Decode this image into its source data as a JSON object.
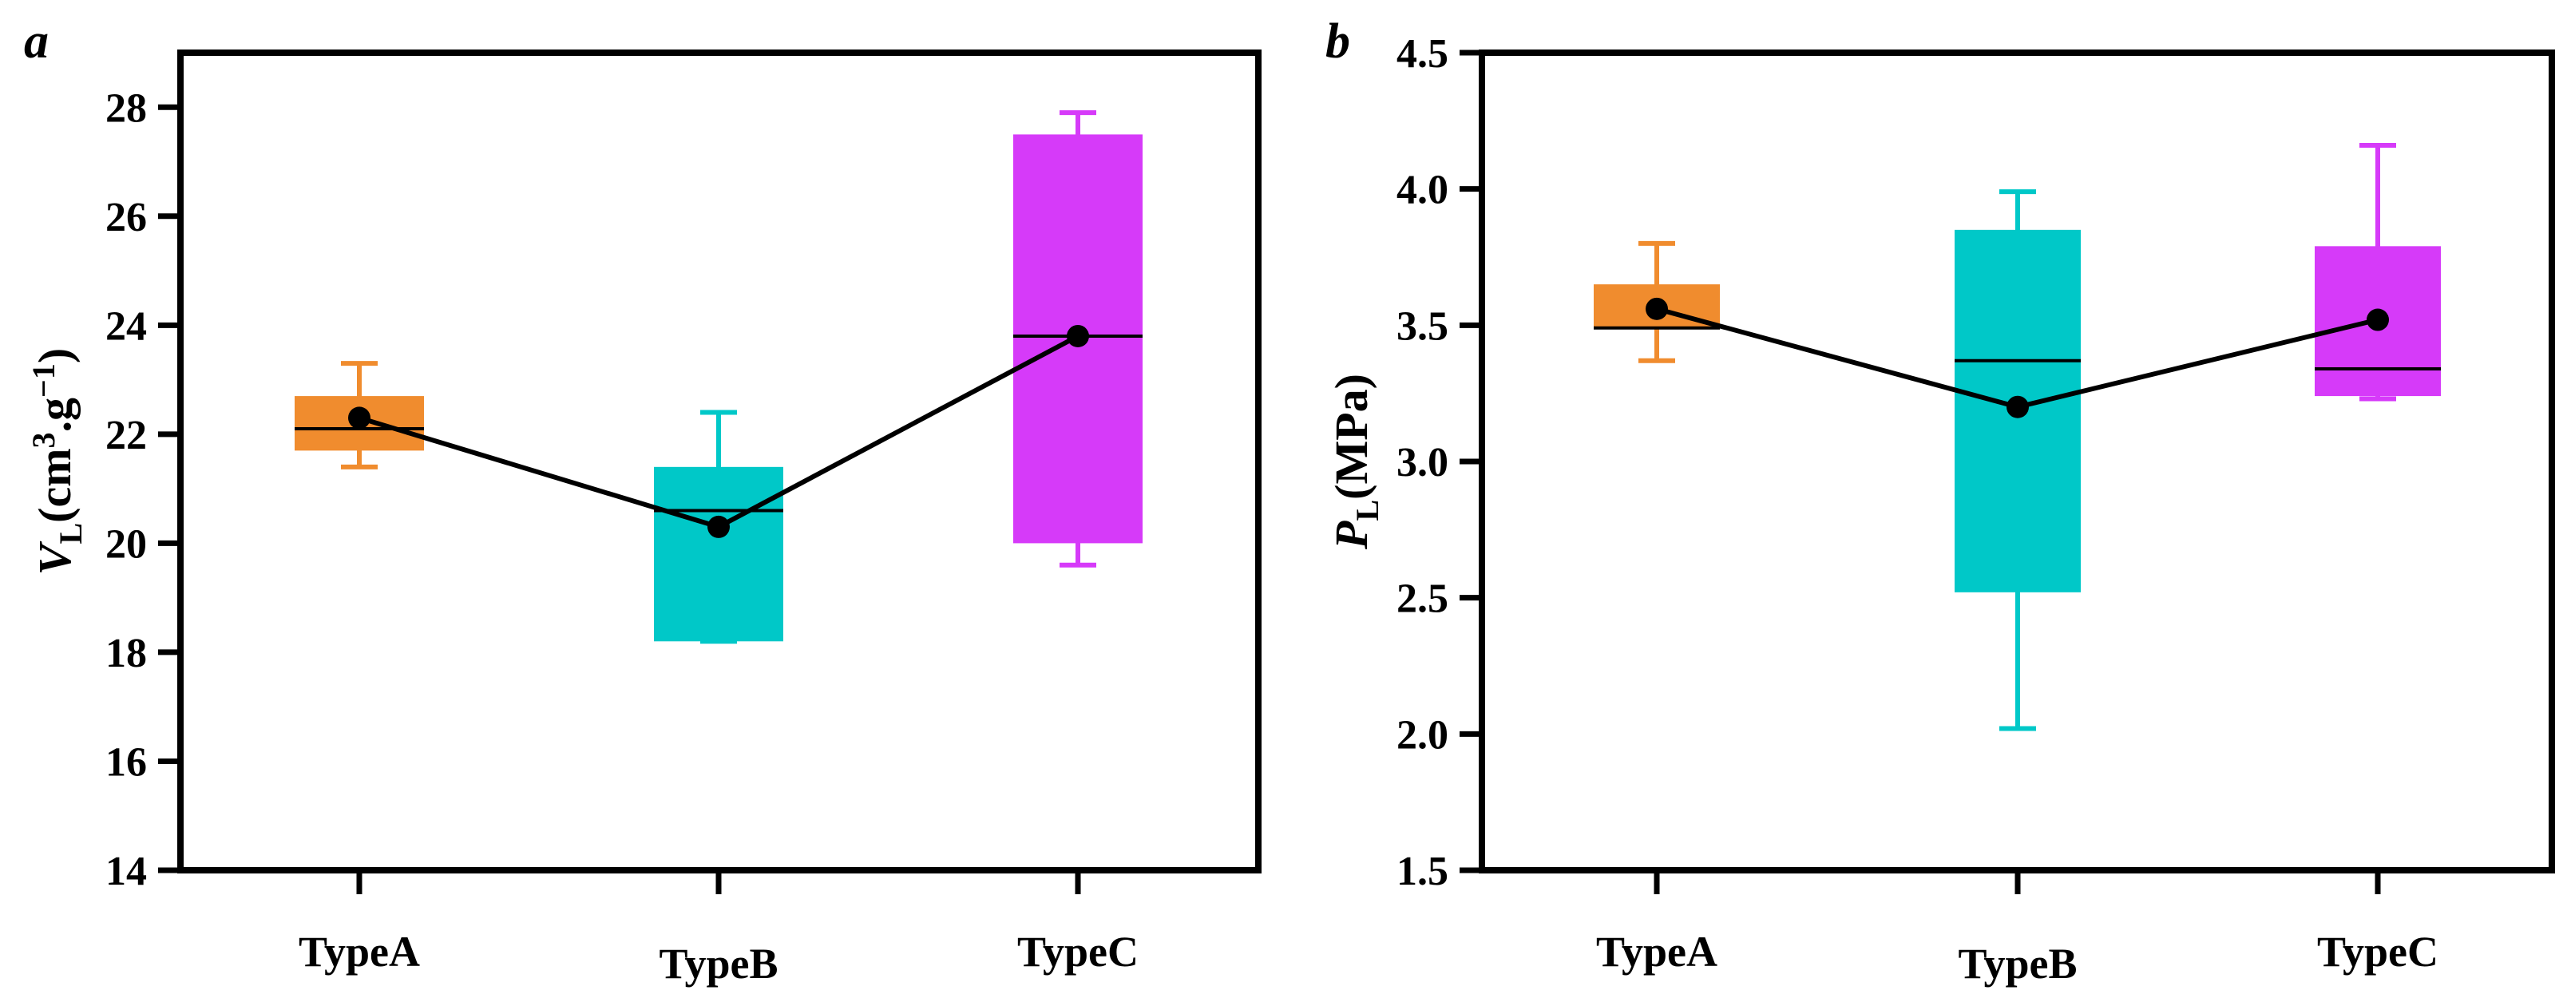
{
  "chart_data": [
    {
      "type": "box",
      "panel_label": "a",
      "ylabel": {
        "main": "V",
        "sub": "L",
        "unit_open": "(cm",
        "sup1": "3",
        "unit_mid": ".g",
        "sup2": "−1",
        "unit_close": ")"
      },
      "ylim": [
        14,
        29
      ],
      "yticks": [
        14,
        16,
        18,
        20,
        22,
        24,
        26,
        28
      ],
      "categories": [
        "TypeA",
        "TypeB",
        "TypeC"
      ],
      "colors": [
        "#F08C2E",
        "#00C8C8",
        "#D63AF9"
      ],
      "boxes": [
        {
          "whisker_low": 21.4,
          "q1": 21.7,
          "median": 22.1,
          "q3": 22.7,
          "whisker_high": 23.3,
          "mean": 22.3
        },
        {
          "whisker_low": 18.2,
          "q1": 18.2,
          "median": 20.6,
          "q3": 21.4,
          "whisker_high": 22.4,
          "mean": 20.3
        },
        {
          "whisker_low": 19.6,
          "q1": 20.0,
          "median": 23.8,
          "q3": 27.5,
          "whisker_high": 27.9,
          "mean": 23.8
        }
      ]
    },
    {
      "type": "box",
      "panel_label": "b",
      "ylabel": {
        "main": "P",
        "sub": "L",
        "unit_open": "(MPa)",
        "sup1": "",
        "unit_mid": "",
        "sup2": "",
        "unit_close": ""
      },
      "ylim": [
        1.5,
        4.5
      ],
      "yticks": [
        1.5,
        2.0,
        2.5,
        3.0,
        3.5,
        4.0,
        4.5
      ],
      "tick_decimals": 1,
      "categories": [
        "TypeA",
        "TypeB",
        "TypeC"
      ],
      "colors": [
        "#F08C2E",
        "#00C8C8",
        "#D63AF9"
      ],
      "boxes": [
        {
          "whisker_low": 3.37,
          "q1": 3.49,
          "median": 3.49,
          "q3": 3.65,
          "whisker_high": 3.8,
          "mean": 3.56
        },
        {
          "whisker_low": 2.02,
          "q1": 2.52,
          "median": 3.37,
          "q3": 3.85,
          "whisker_high": 3.99,
          "mean": 3.2
        },
        {
          "whisker_low": 3.23,
          "q1": 3.24,
          "median": 3.34,
          "q3": 3.79,
          "whisker_high": 4.16,
          "mean": 3.52
        }
      ]
    }
  ]
}
